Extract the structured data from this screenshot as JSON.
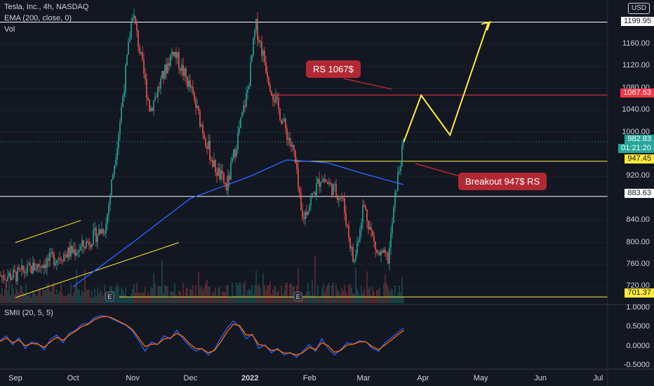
{
  "header": {
    "title": "Tesla, Inc., 4h, NASDAQ",
    "indicator1": "EMA (200, close, 0)",
    "indicator2": "Vol",
    "currency": "USD"
  },
  "subpane": {
    "label": "SMII (20, 5, 5)"
  },
  "annotations": {
    "rs": "RS 1067$",
    "breakout": "Breakout 947$ RS"
  },
  "price_tags": {
    "t1199": "1199.95",
    "t1067": "1067.63",
    "t982": "982.83",
    "t982_timer": "01:21:20",
    "t947": "947.45",
    "t883": "883.63",
    "t701": "701.37"
  },
  "colors": {
    "background": "#131722",
    "up": "#26a69a",
    "down": "#ef5350",
    "ema": "#2962ff",
    "yellow": "#ffeb3b",
    "red_level": "#f23645",
    "white_level": "#ffffff",
    "annotation": "#b22833"
  },
  "chart_data": [
    {
      "type": "candlestick",
      "title": "Tesla, Inc., 4h, NASDAQ",
      "y_ticks": [
        "1160.00",
        "1120.00",
        "1080.00",
        "1040.00",
        "1000.00",
        "920.00",
        "840.00",
        "800.00",
        "760.00",
        "720.00"
      ],
      "x_ticks": [
        "Sep",
        "Oct",
        "Nov",
        "Dec",
        "2022",
        "Feb",
        "Mar",
        "Apr",
        "May",
        "Jun",
        "Jul"
      ],
      "ylim": [
        690,
        1240
      ],
      "horizontal_levels": [
        {
          "value": 1199.95,
          "color": "white"
        },
        {
          "value": 1067.63,
          "color": "red"
        },
        {
          "value": 947.45,
          "color": "yellow"
        },
        {
          "value": 883.63,
          "color": "white"
        },
        {
          "value": 701.37,
          "color": "yellow"
        }
      ],
      "ohlc_keypoints": [
        {
          "date": "2021-09-01",
          "close": 740
        },
        {
          "date": "2021-09-20",
          "close": 770
        },
        {
          "date": "2021-10-05",
          "close": 790
        },
        {
          "date": "2021-10-18",
          "close": 830
        },
        {
          "date": "2021-10-25",
          "close": 1010
        },
        {
          "date": "2021-11-01",
          "close": 1220
        },
        {
          "date": "2021-11-10",
          "close": 1040
        },
        {
          "date": "2021-11-22",
          "close": 1150
        },
        {
          "date": "2021-12-01",
          "close": 1080
        },
        {
          "date": "2021-12-13",
          "close": 940
        },
        {
          "date": "2021-12-20",
          "close": 900
        },
        {
          "date": "2021-12-31",
          "close": 1080
        },
        {
          "date": "2022-01-04",
          "close": 1195
        },
        {
          "date": "2022-01-12",
          "close": 1080
        },
        {
          "date": "2022-01-24",
          "close": 960
        },
        {
          "date": "2022-01-28",
          "close": 840
        },
        {
          "date": "2022-02-07",
          "close": 920
        },
        {
          "date": "2022-02-18",
          "close": 880
        },
        {
          "date": "2022-02-24",
          "close": 760
        },
        {
          "date": "2022-03-01",
          "close": 870
        },
        {
          "date": "2022-03-08",
          "close": 780
        },
        {
          "date": "2022-03-14",
          "close": 770
        },
        {
          "date": "2022-03-18",
          "close": 900
        },
        {
          "date": "2022-03-22",
          "close": 982.83
        }
      ],
      "ema_keypoints": [
        {
          "date": "2021-10-01",
          "value": 720
        },
        {
          "date": "2021-11-01",
          "value": 800
        },
        {
          "date": "2021-12-01",
          "value": 880
        },
        {
          "date": "2022-01-01",
          "value": 920
        },
        {
          "date": "2022-01-20",
          "value": 950
        },
        {
          "date": "2022-02-10",
          "value": 945
        },
        {
          "date": "2022-03-01",
          "value": 925
        },
        {
          "date": "2022-03-22",
          "value": 905
        }
      ],
      "projection": [
        {
          "date": "2022-03-22",
          "value": 982.83
        },
        {
          "date": "2022-03-31",
          "value": 1067
        },
        {
          "date": "2022-04-15",
          "value": 995
        },
        {
          "date": "2022-05-05",
          "value": 1200
        }
      ],
      "trendlines": [
        {
          "from": {
            "date": "2021-09-01",
            "value": 800
          },
          "to": {
            "date": "2021-10-05",
            "value": 840
          }
        },
        {
          "from": {
            "date": "2021-09-01",
            "value": 700
          },
          "to": {
            "date": "2021-11-25",
            "value": 800
          }
        }
      ],
      "earnings_markers": [
        "2021-10-20",
        "2022-01-26"
      ]
    },
    {
      "type": "line",
      "title": "SMII (20, 5, 5)",
      "y_ticks": [
        "1.0000",
        "0.5000",
        "0.0000",
        "-0.5000"
      ],
      "ylim": [
        -0.55,
        1.05
      ],
      "series": [
        {
          "color": "#2962ff",
          "values": [
            0.15,
            0.28,
            0.05,
            0.22,
            -0.05,
            0.12,
            0.08,
            -0.08,
            0.18,
            0.3,
            0.1,
            0.35,
            0.42,
            0.58,
            0.6,
            0.75,
            0.8,
            0.78,
            0.7,
            0.62,
            0.55,
            0.4,
            0.15,
            -0.12,
            0.12,
            0.05,
            0.28,
            0.2,
            0.42,
            0.2,
            0.02,
            -0.12,
            -0.05,
            -0.22,
            -0.08,
            0.22,
            0.48,
            0.66,
            0.5,
            0.2,
            0.32,
            -0.05,
            0.04,
            -0.16,
            -0.05,
            -0.22,
            -0.15,
            -0.28,
            -0.12,
            0.05,
            -0.12,
            0.2,
            -0.05,
            -0.22,
            -0.08,
            0.1,
            0.06,
            0.15,
            0.12,
            -0.05,
            -0.12,
            0.1,
            0.22,
            0.36,
            0.48
          ]
        },
        {
          "color": "#ff6d00",
          "values": [
            0.13,
            0.22,
            0.1,
            0.17,
            0.02,
            0.08,
            0.06,
            -0.02,
            0.12,
            0.24,
            0.16,
            0.3,
            0.4,
            0.52,
            0.58,
            0.7,
            0.76,
            0.78,
            0.72,
            0.64,
            0.56,
            0.44,
            0.22,
            0.0,
            0.06,
            0.06,
            0.2,
            0.22,
            0.34,
            0.26,
            0.08,
            -0.05,
            -0.06,
            -0.16,
            -0.1,
            0.12,
            0.38,
            0.58,
            0.54,
            0.3,
            0.3,
            0.05,
            0.02,
            -0.1,
            -0.08,
            -0.17,
            -0.17,
            -0.22,
            -0.16,
            -0.02,
            -0.08,
            0.1,
            0.02,
            -0.15,
            -0.1,
            0.04,
            0.06,
            0.12,
            0.12,
            0.0,
            -0.08,
            0.04,
            0.16,
            0.3,
            0.42
          ]
        }
      ]
    }
  ]
}
